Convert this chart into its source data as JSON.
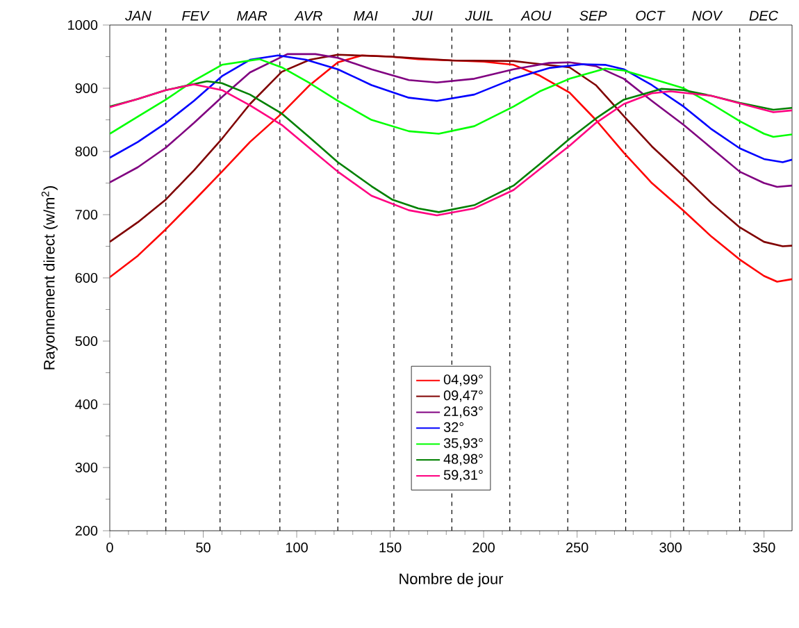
{
  "chart_data": {
    "type": "line",
    "xlabel": "Nombre de jour",
    "ylabel": "Rayonnement direct (w/m$^{2}$)",
    "xlim": [
      0,
      365
    ],
    "ylim": [
      200,
      1000
    ],
    "xticks": [
      0,
      50,
      100,
      150,
      200,
      250,
      300,
      350
    ],
    "yticks": [
      200,
      300,
      400,
      500,
      600,
      700,
      800,
      900,
      1000
    ],
    "annotations": [
      "JAN",
      "FEV",
      "MAR",
      "AVR",
      "MAI",
      "JUI",
      "JUIL",
      "AOU",
      "SEP",
      "OCT",
      "NOV",
      "DEC"
    ],
    "ref_lines": [
      {
        "axis": "x",
        "value": 30,
        "color": "#000000",
        "line_style": "dashed"
      },
      {
        "axis": "x",
        "value": 59,
        "color": "#000000",
        "line_style": "dashed"
      },
      {
        "axis": "x",
        "value": 91,
        "color": "#000000",
        "line_style": "dashed"
      },
      {
        "axis": "x",
        "value": 122,
        "color": "#000000",
        "line_style": "dashed"
      },
      {
        "axis": "x",
        "value": 152,
        "color": "#000000",
        "line_style": "dashed"
      },
      {
        "axis": "x",
        "value": 183,
        "color": "#000000",
        "line_style": "dashed"
      },
      {
        "axis": "x",
        "value": 214,
        "color": "#000000",
        "line_style": "dashed"
      },
      {
        "axis": "x",
        "value": 245,
        "color": "#000000",
        "line_style": "dashed"
      },
      {
        "axis": "x",
        "value": 276,
        "color": "#000000",
        "line_style": "dashed"
      },
      {
        "axis": "x",
        "value": 307,
        "color": "#000000",
        "line_style": "dashed"
      },
      {
        "axis": "x",
        "value": 337,
        "color": "#000000",
        "line_style": "dashed"
      }
    ],
    "grid": false,
    "legend": "bottom",
    "marker": "none",
    "line_style": "solid",
    "series": [
      {
        "name": "04,99°",
        "color": "#ff0000",
        "x": [
          0,
          15,
          30,
          45,
          60,
          75,
          92,
          107,
          122,
          135,
          150,
          165,
          183,
          200,
          216,
          230,
          246,
          260,
          275,
          290,
          307,
          322,
          337,
          350,
          357,
          365
        ],
        "values": [
          601,
          635,
          677,
          722,
          768,
          815,
          860,
          905,
          941,
          952,
          950,
          946,
          944,
          942,
          937,
          920,
          893,
          850,
          798,
          750,
          706,
          665,
          629,
          603,
          594,
          598
        ]
      },
      {
        "name": "09,47°",
        "color": "#800000",
        "x": [
          0,
          15,
          30,
          45,
          60,
          75,
          92,
          107,
          122,
          150,
          183,
          216,
          246,
          260,
          275,
          290,
          307,
          322,
          337,
          350,
          360,
          365
        ],
        "values": [
          657,
          688,
          724,
          770,
          820,
          875,
          926,
          945,
          953,
          950,
          944,
          943,
          933,
          905,
          856,
          808,
          761,
          718,
          680,
          657,
          650,
          651
        ]
      },
      {
        "name": "21,63°",
        "color": "#800080",
        "x": [
          0,
          15,
          30,
          45,
          60,
          75,
          95,
          110,
          122,
          140,
          160,
          175,
          195,
          216,
          235,
          246,
          260,
          275,
          290,
          307,
          322,
          337,
          350,
          357,
          365
        ],
        "values": [
          751,
          775,
          806,
          845,
          886,
          925,
          954,
          954,
          948,
          930,
          913,
          909,
          915,
          930,
          940,
          941,
          935,
          915,
          880,
          842,
          805,
          768,
          750,
          744,
          746
        ]
      },
      {
        "name": "32°",
        "color": "#0000ff",
        "x": [
          0,
          15,
          30,
          45,
          60,
          75,
          90,
          105,
          122,
          140,
          160,
          175,
          195,
          216,
          235,
          253,
          265,
          275,
          290,
          307,
          322,
          337,
          350,
          360,
          365
        ],
        "values": [
          790,
          815,
          845,
          880,
          919,
          945,
          952,
          945,
          930,
          905,
          885,
          880,
          890,
          915,
          932,
          938,
          937,
          930,
          905,
          871,
          835,
          805,
          788,
          783,
          787
        ]
      },
      {
        "name": "35,93°",
        "color": "#00ff00",
        "x": [
          0,
          15,
          30,
          45,
          60,
          80,
          92,
          107,
          122,
          140,
          160,
          176,
          195,
          216,
          230,
          246,
          265,
          275,
          290,
          307,
          322,
          337,
          350,
          355,
          365
        ],
        "values": [
          828,
          855,
          882,
          912,
          937,
          946,
          933,
          908,
          880,
          850,
          832,
          828,
          840,
          871,
          895,
          915,
          931,
          928,
          915,
          900,
          875,
          848,
          828,
          823,
          827
        ]
      },
      {
        "name": "48,98°",
        "color": "#008000",
        "x": [
          0,
          15,
          30,
          52,
          60,
          75,
          92,
          107,
          122,
          140,
          151,
          165,
          176,
          195,
          216,
          230,
          246,
          260,
          275,
          295,
          307,
          322,
          337,
          355,
          365
        ],
        "values": [
          871,
          883,
          897,
          911,
          908,
          890,
          860,
          822,
          783,
          745,
          724,
          710,
          704,
          715,
          746,
          780,
          820,
          852,
          882,
          899,
          897,
          888,
          877,
          866,
          869
        ]
      },
      {
        "name": "59,31°",
        "color": "#ff0080",
        "x": [
          0,
          15,
          30,
          45,
          60,
          75,
          92,
          107,
          122,
          140,
          160,
          175,
          195,
          216,
          230,
          246,
          260,
          275,
          290,
          300,
          322,
          337,
          355,
          365
        ],
        "values": [
          870,
          883,
          897,
          906,
          897,
          873,
          842,
          805,
          768,
          730,
          707,
          699,
          710,
          739,
          772,
          809,
          845,
          875,
          892,
          895,
          888,
          876,
          862,
          865
        ]
      }
    ]
  }
}
